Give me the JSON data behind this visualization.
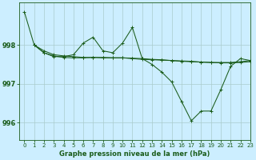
{
  "background_color": "#cceeff",
  "grid_color": "#aacccc",
  "line_color": "#1a5c1a",
  "title": "Graphe pression niveau de la mer (hPa)",
  "xlim": [
    -0.5,
    23
  ],
  "ylim": [
    995.55,
    999.1
  ],
  "yticks": [
    996,
    997,
    998
  ],
  "xticks": [
    0,
    1,
    2,
    3,
    4,
    5,
    6,
    7,
    8,
    9,
    10,
    11,
    12,
    13,
    14,
    15,
    16,
    17,
    18,
    19,
    20,
    21,
    22,
    23
  ],
  "series": [
    {
      "x": [
        0,
        1,
        2,
        3,
        4,
        5,
        6,
        7,
        8,
        9,
        10,
        11,
        12,
        13,
        14,
        15,
        16,
        17,
        18,
        19,
        20,
        21,
        22,
        23
      ],
      "y": [
        998.85,
        998.0,
        997.8,
        997.7,
        997.7,
        997.75,
        998.05,
        998.2,
        997.85,
        997.8,
        998.05,
        998.45,
        997.65,
        997.5,
        997.3,
        997.05,
        996.55,
        996.05,
        996.3,
        996.3,
        996.85,
        997.45,
        997.65,
        997.6
      ]
    },
    {
      "x": [
        1,
        2,
        3,
        4,
        5,
        6,
        7,
        8,
        9,
        10,
        11,
        12,
        13,
        14,
        15,
        16,
        17,
        18,
        19,
        20,
        21,
        22,
        23
      ],
      "y": [
        998.0,
        997.8,
        997.72,
        997.68,
        997.67,
        997.67,
        997.68,
        997.68,
        997.67,
        997.67,
        997.66,
        997.65,
        997.63,
        997.62,
        997.6,
        997.58,
        997.57,
        997.56,
        997.55,
        997.55,
        997.55,
        997.57,
        997.6
      ]
    },
    {
      "x": [
        1,
        2,
        3,
        4,
        5,
        6,
        7,
        8,
        9,
        10,
        11,
        12,
        13,
        14,
        15,
        16,
        17,
        18,
        19,
        20,
        21,
        22,
        23
      ],
      "y": [
        998.0,
        997.85,
        997.75,
        997.72,
        997.7,
        997.68,
        997.68,
        997.67,
        997.67,
        997.67,
        997.65,
        997.63,
        997.62,
        997.61,
        997.6,
        997.59,
        997.58,
        997.56,
        997.55,
        997.54,
        997.54,
        997.55,
        997.57
      ]
    }
  ]
}
